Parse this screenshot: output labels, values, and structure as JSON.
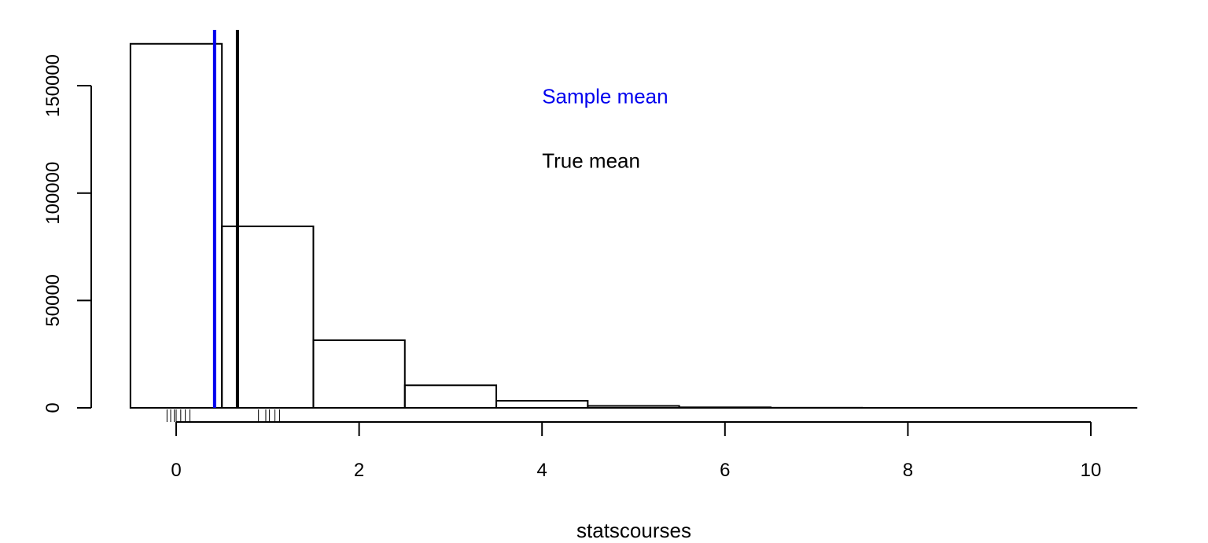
{
  "chart_data": {
    "type": "bar",
    "title": "",
    "xlabel": "statscourses",
    "ylabel": "",
    "xlim": [
      -0.5,
      10.5
    ],
    "ylim": [
      0,
      175000
    ],
    "bins": [
      {
        "x0": -0.5,
        "x1": 0.5,
        "count": 169500
      },
      {
        "x0": 0.5,
        "x1": 1.5,
        "count": 84500
      },
      {
        "x0": 1.5,
        "x1": 2.5,
        "count": 31500
      },
      {
        "x0": 2.5,
        "x1": 3.5,
        "count": 10500
      },
      {
        "x0": 3.5,
        "x1": 4.5,
        "count": 3300
      },
      {
        "x0": 4.5,
        "x1": 5.5,
        "count": 900
      },
      {
        "x0": 5.5,
        "x1": 6.5,
        "count": 250
      },
      {
        "x0": 6.5,
        "x1": 7.5,
        "count": 60
      },
      {
        "x0": 7.5,
        "x1": 8.5,
        "count": 15
      },
      {
        "x0": 8.5,
        "x1": 9.5,
        "count": 4
      },
      {
        "x0": 9.5,
        "x1": 10.5,
        "count": 1
      }
    ],
    "x_ticks": [
      0,
      2,
      4,
      6,
      8,
      10
    ],
    "x_tick_labels": [
      "0",
      "2",
      "4",
      "6",
      "8",
      "10"
    ],
    "y_ticks": [
      0,
      50000,
      100000,
      150000
    ],
    "y_tick_labels": [
      "0",
      "50000",
      "100000",
      "150000"
    ],
    "rug": [
      -0.1,
      -0.06,
      -0.02,
      0.0,
      0.05,
      0.1,
      0.15,
      0.9,
      0.98,
      1.02,
      1.08,
      1.13
    ],
    "vlines": [
      {
        "name": "Sample mean",
        "x": 0.42,
        "color": "#0000ee"
      },
      {
        "name": "True mean",
        "x": 0.67,
        "color": "#000000"
      }
    ],
    "annotations": [
      {
        "text": "Sample mean",
        "x": 4.0,
        "y": 145000,
        "color": "#0000ee"
      },
      {
        "text": "True mean",
        "x": 4.0,
        "y": 115000,
        "color": "#000000"
      }
    ]
  }
}
